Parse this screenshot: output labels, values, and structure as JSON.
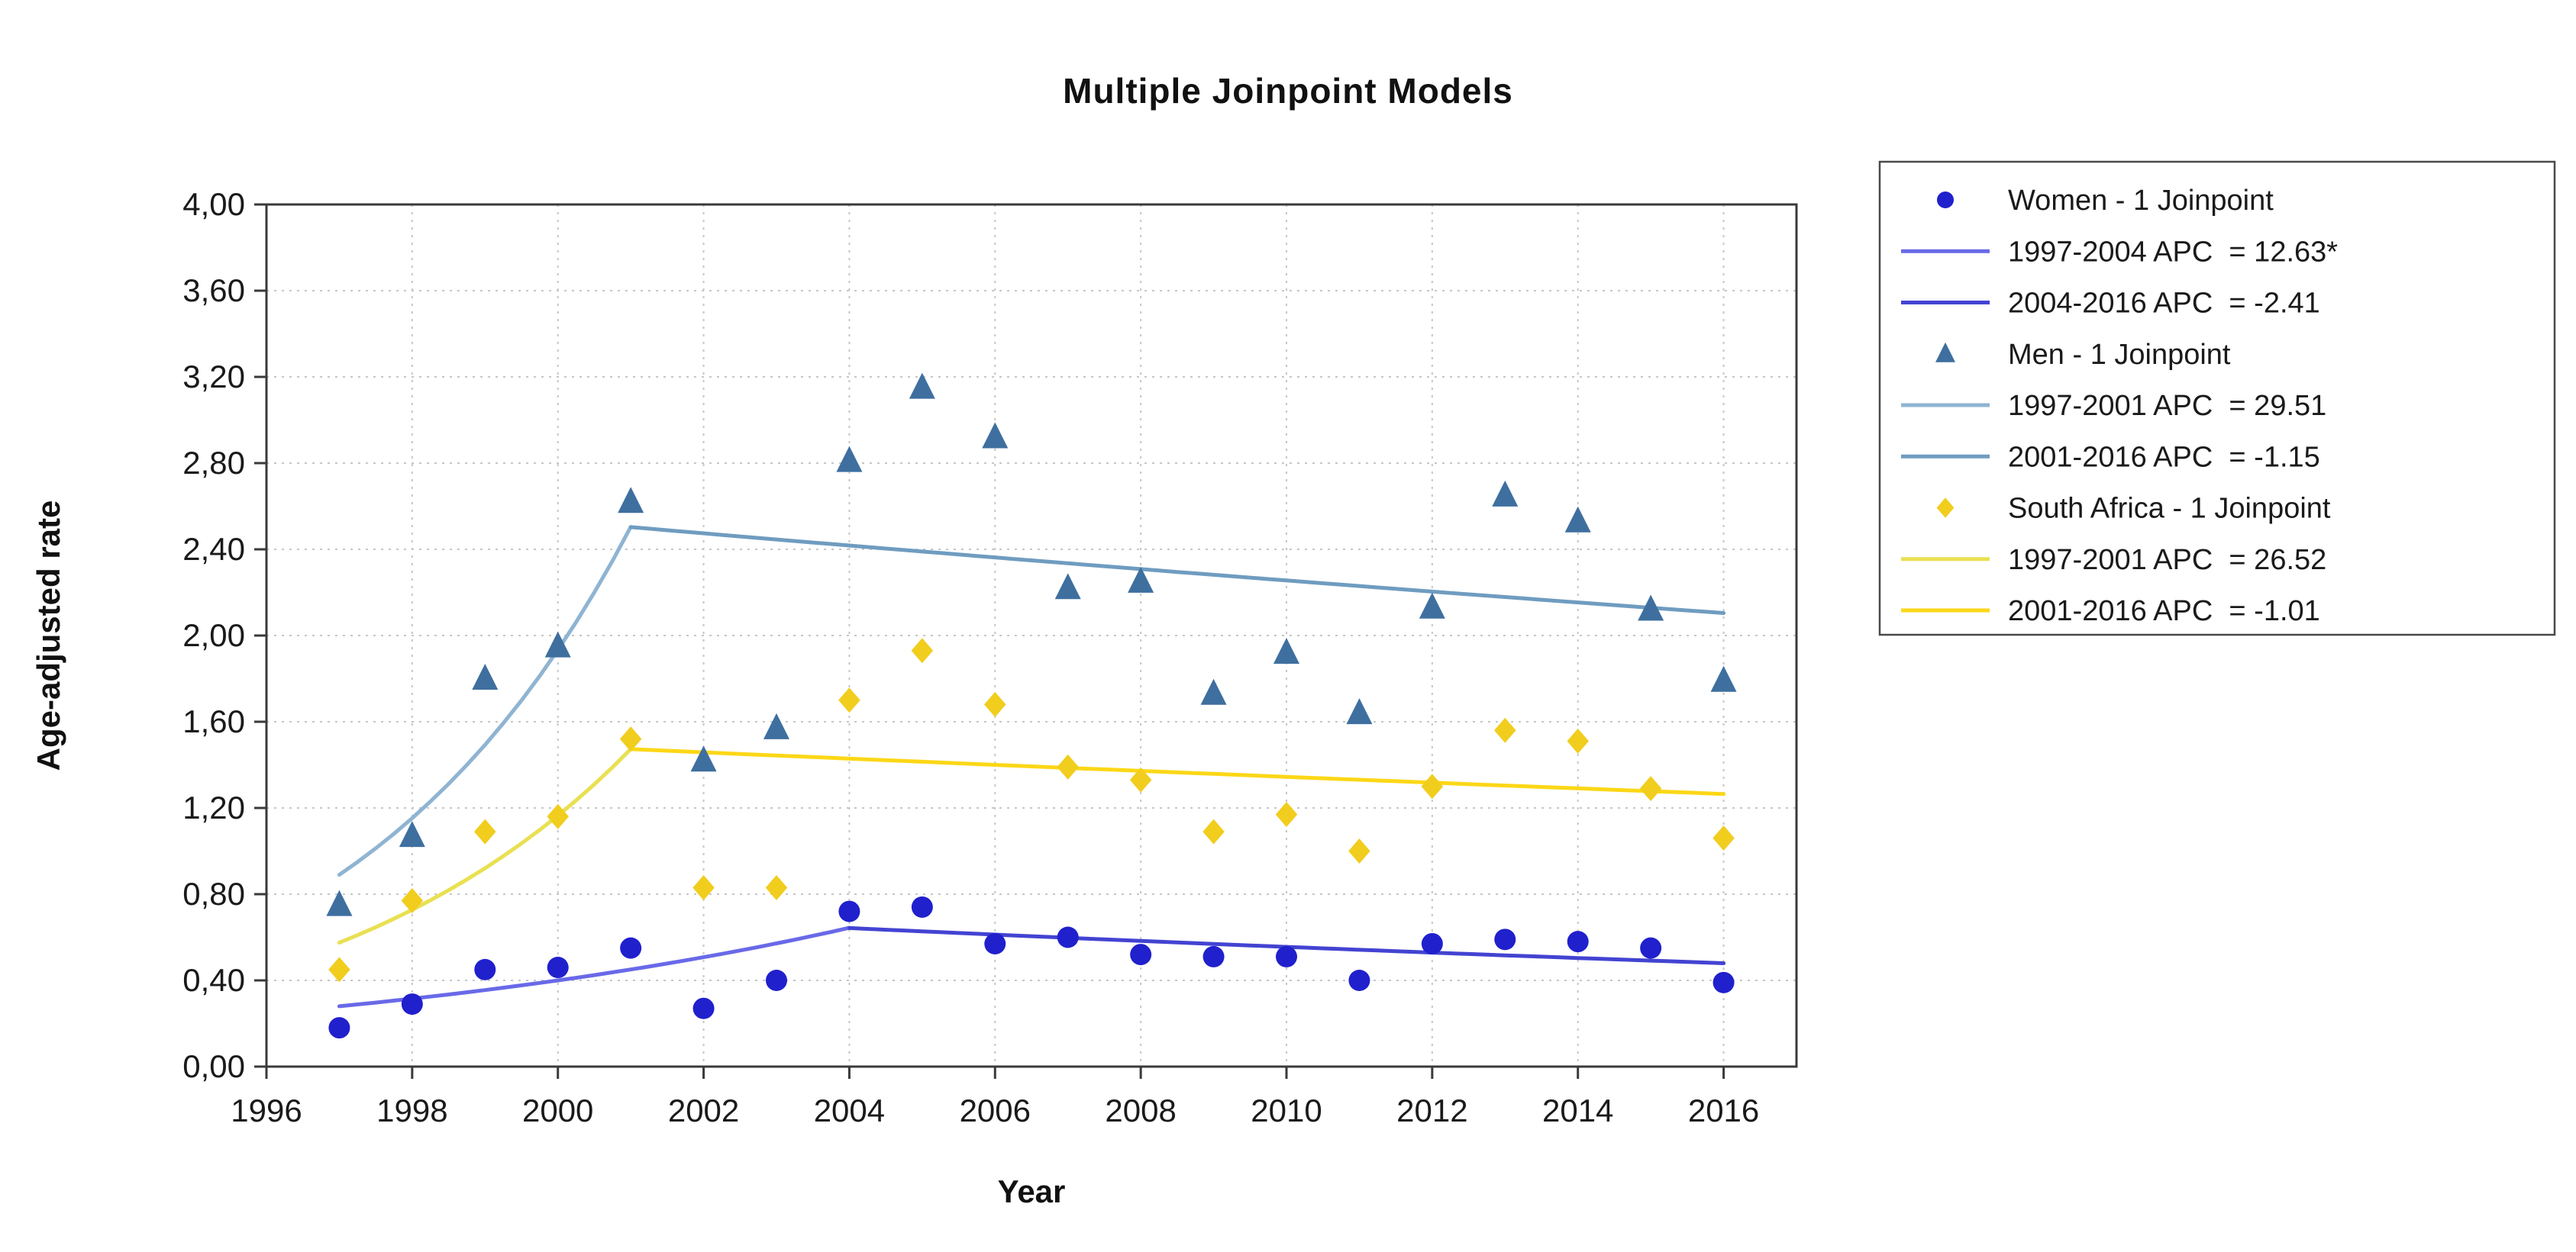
{
  "title": "Multiple Joinpoint Models",
  "x_axis": {
    "label": "Year",
    "min": 1996,
    "max": 2017,
    "ticks": [
      1996,
      1998,
      2000,
      2002,
      2004,
      2006,
      2008,
      2010,
      2012,
      2014,
      2016
    ]
  },
  "y_axis": {
    "label": "Age-adjusted rate",
    "min": 0,
    "max": 4,
    "tick_step": 0.4,
    "tick_labels": [
      "0,00",
      "0,40",
      "0,80",
      "1,20",
      "1,60",
      "2,00",
      "2,40",
      "2,80",
      "3,20",
      "3,60",
      "4,00"
    ]
  },
  "chart_data": {
    "type": "scatter",
    "title": "Multiple Joinpoint Models",
    "xlabel": "Year",
    "ylabel": "Age-adjusted rate",
    "xlim": [
      1996,
      2017
    ],
    "ylim": [
      0,
      4
    ],
    "grid": "dotted",
    "legend_position": "right-outside",
    "x_years": [
      1997,
      1998,
      1999,
      2000,
      2001,
      2002,
      2003,
      2004,
      2005,
      2006,
      2007,
      2008,
      2009,
      2010,
      2011,
      2012,
      2013,
      2014,
      2015,
      2016
    ],
    "series": [
      {
        "name": "Women - 1 Joinpoint",
        "marker": "circle",
        "color": "#2020cd",
        "values": [
          0.18,
          0.29,
          0.45,
          0.46,
          0.55,
          0.27,
          0.4,
          0.72,
          0.74,
          0.57,
          0.6,
          0.52,
          0.51,
          0.51,
          0.4,
          0.57,
          0.59,
          0.58,
          0.55,
          0.39
        ],
        "fit": [
          {
            "from": 1997,
            "to": 2004,
            "start": 0.28,
            "apc": 12.63,
            "color": "#6969e8",
            "label": "1997-2004 APC  = 12.63*"
          },
          {
            "from": 2004,
            "to": 2016,
            "start": 0.643,
            "apc": -2.41,
            "color": "#4343d2",
            "label": "2004-2016 APC  = -2.41"
          }
        ]
      },
      {
        "name": "Men - 1 Joinpoint",
        "marker": "triangle",
        "color": "#3e6f9f",
        "values": [
          0.75,
          1.07,
          1.8,
          1.95,
          2.62,
          1.42,
          1.57,
          2.81,
          3.15,
          2.92,
          2.22,
          2.25,
          1.73,
          1.92,
          1.64,
          2.13,
          2.65,
          2.53,
          2.12,
          1.79
        ],
        "fit": [
          {
            "from": 1997,
            "to": 2001,
            "start": 0.89,
            "apc": 29.51,
            "color": "#8fb4d2",
            "label": "1997-2001 APC  = 29.51"
          },
          {
            "from": 2001,
            "to": 2016,
            "start": 2.503,
            "apc": -1.15,
            "color": "#6f9cc0",
            "label": "2001-2016 APC  = -1.15"
          }
        ]
      },
      {
        "name": "South Africa - 1 Joinpoint",
        "marker": "diamond",
        "color": "#f1cd1e",
        "values": [
          0.45,
          0.77,
          1.09,
          1.16,
          1.52,
          0.83,
          0.83,
          1.7,
          1.93,
          1.68,
          1.39,
          1.33,
          1.09,
          1.17,
          1.0,
          1.3,
          1.56,
          1.51,
          1.29,
          1.06
        ],
        "fit": [
          {
            "from": 1997,
            "to": 2001,
            "start": 0.575,
            "apc": 26.52,
            "color": "#e9e052",
            "label": "1997-2001 APC  = 26.52"
          },
          {
            "from": 2001,
            "to": 2016,
            "start": 1.473,
            "apc": -1.01,
            "color": "#fcd716",
            "label": "2001-2016 APC  = -1.01"
          }
        ]
      }
    ]
  },
  "legend": {
    "items": [
      {
        "type": "marker",
        "marker": "circle",
        "color": "#2020cd",
        "label": "Women - 1 Joinpoint"
      },
      {
        "type": "line",
        "color": "#6969e8",
        "label": "1997-2004 APC  = 12.63*"
      },
      {
        "type": "line",
        "color": "#4343d2",
        "label": "2004-2016 APC  = -2.41"
      },
      {
        "type": "marker",
        "marker": "triangle",
        "color": "#3e6f9f",
        "label": "Men - 1 Joinpoint"
      },
      {
        "type": "line",
        "color": "#8fb4d2",
        "label": "1997-2001 APC  = 29.51"
      },
      {
        "type": "line",
        "color": "#6f9cc0",
        "label": "2001-2016 APC  = -1.15"
      },
      {
        "type": "marker",
        "marker": "diamond",
        "color": "#f1cd1e",
        "label": "South Africa - 1 Joinpoint"
      },
      {
        "type": "line",
        "color": "#e9e052",
        "label": "1997-2001 APC  = 26.52"
      },
      {
        "type": "line",
        "color": "#fcd716",
        "label": "2001-2016 APC  = -1.01"
      }
    ]
  },
  "colors": {
    "plot_border": "#3a3a3a",
    "gridline": "#c6c6c6",
    "tick": "#3a3a3a",
    "text": "#1a1a1a",
    "legend_border": "#4a4a4a"
  }
}
